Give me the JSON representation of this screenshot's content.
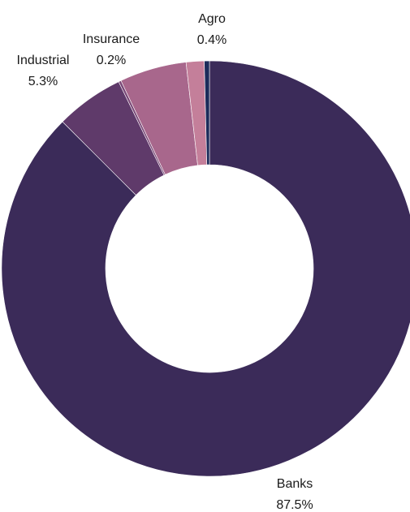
{
  "chart_data": {
    "type": "pie",
    "variant": "donut",
    "slices": [
      {
        "label": "Banks",
        "value": 87.5,
        "display": "87.5%",
        "color": "#3b2b59"
      },
      {
        "label": "Industrial",
        "value": 5.3,
        "display": "5.3%",
        "color": "#5f3a6a"
      },
      {
        "label": "Insurance",
        "value": 0.2,
        "display": "0.2%",
        "color": "#7a4877"
      },
      {
        "label": "",
        "value": 5.2,
        "display": "",
        "color": "#a8678c"
      },
      {
        "label": "",
        "value": 1.4,
        "display": "",
        "color": "#c47f9a"
      },
      {
        "label": "Agro",
        "value": 0.4,
        "display": "0.4%",
        "color": "#1c2b5a"
      }
    ],
    "start": "top",
    "direction": "clockwise",
    "legend": "none"
  }
}
